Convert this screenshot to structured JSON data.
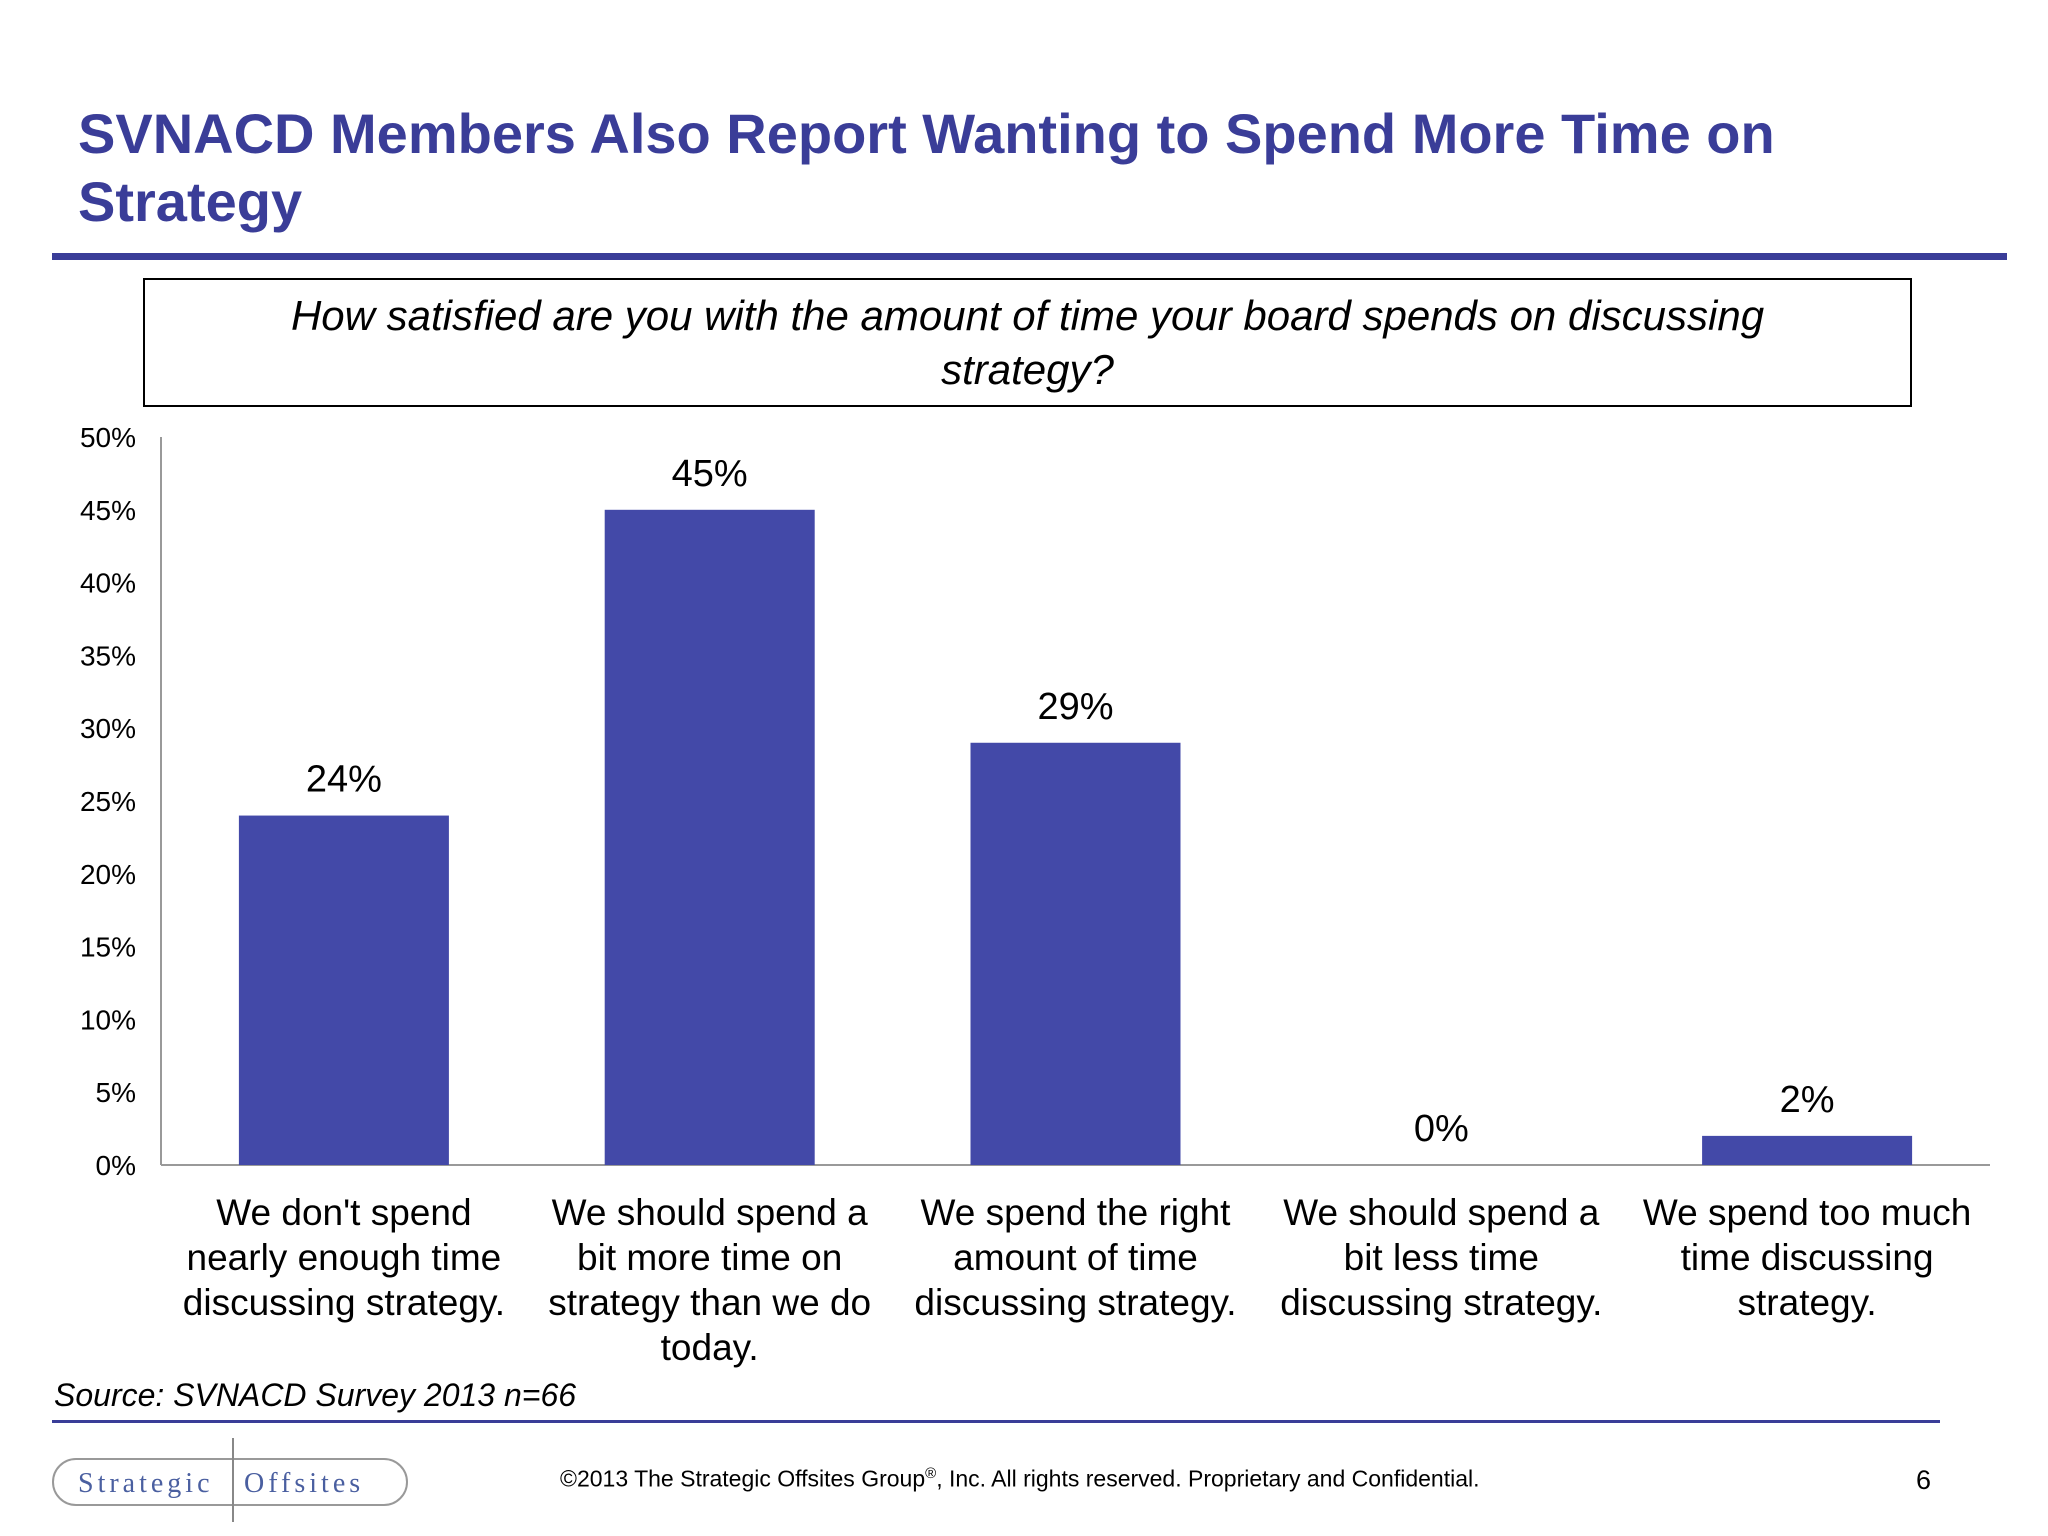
{
  "slide": {
    "title": "SVNACD Members Also Report Wanting to Spend More Time on Strategy",
    "question": "How satisfied are you with the amount of time your board spends on discussing strategy?",
    "source": "Source:  SVNACD Survey 2013 n=66",
    "copyright_pre": "©2013 The Strategic Offsites Group",
    "copyright_mark": "®",
    "copyright_post": ", Inc.  All rights reserved. Proprietary and Confidential.",
    "page_number": "6",
    "logo": {
      "left_word": "Strategic",
      "right_word": "Offsites"
    }
  },
  "colors": {
    "accent": "#3a3d98",
    "bar": "#4349a8"
  },
  "chart_data": {
    "type": "bar",
    "categories": [
      "We don't spend nearly enough time discussing strategy.",
      "We should spend a bit more time on strategy than we do today.",
      "We spend the right amount of time discussing strategy.",
      "We should spend a bit less time discussing strategy.",
      "We spend too much time discussing strategy."
    ],
    "values": [
      24,
      45,
      29,
      0,
      2
    ],
    "data_labels": [
      "24%",
      "45%",
      "29%",
      "0%",
      "2%"
    ],
    "ylim": [
      0,
      50
    ],
    "yticks": [
      0,
      5,
      10,
      15,
      20,
      25,
      30,
      35,
      40,
      45,
      50
    ],
    "ytick_labels": [
      "0%",
      "5%",
      "10%",
      "15%",
      "20%",
      "25%",
      "30%",
      "35%",
      "40%",
      "45%",
      "50%"
    ],
    "xlabel": "",
    "ylabel": "",
    "grid": false,
    "legend": "none"
  }
}
